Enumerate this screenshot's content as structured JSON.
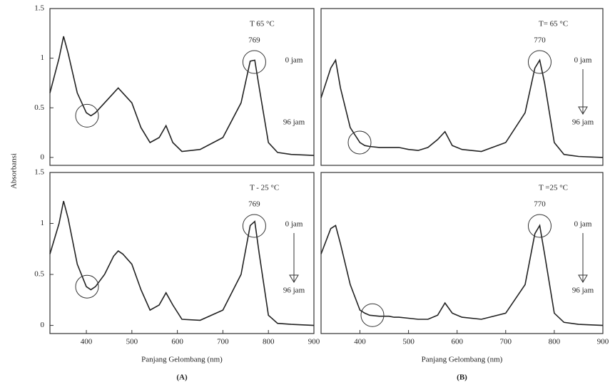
{
  "chart_data": [
    {
      "type": "line",
      "temperature": "T 65 °C",
      "peak_label": "769",
      "start_label": "0 jam",
      "end_label": "96 jam",
      "ylabel": "Absorbansi",
      "x": [
        320,
        340,
        350,
        360,
        380,
        400,
        410,
        420,
        440,
        460,
        470,
        480,
        500,
        520,
        540,
        560,
        575,
        590,
        610,
        650,
        700,
        740,
        760,
        770,
        780,
        800,
        820,
        850,
        900
      ],
      "values": [
        0.65,
        1.0,
        1.22,
        1.05,
        0.65,
        0.45,
        0.42,
        0.45,
        0.55,
        0.65,
        0.7,
        0.65,
        0.55,
        0.3,
        0.15,
        0.2,
        0.32,
        0.15,
        0.06,
        0.08,
        0.2,
        0.55,
        0.97,
        0.98,
        0.7,
        0.15,
        0.05,
        0.03,
        0.02
      ],
      "color": "#222222",
      "xlim": [
        320,
        900
      ],
      "ylim": [
        -0.08,
        1.5
      ],
      "yticks": [
        {
          "value": 1.5,
          "label": "1.5"
        },
        1,
        {
          "value": 0.5,
          "label": "0.5"
        },
        0
      ]
    },
    {
      "type": "line",
      "temperature": "T= 65 °C",
      "peak_label": "770",
      "start_label": "0 jam",
      "end_label": "96 jam",
      "x": [
        320,
        340,
        350,
        360,
        380,
        400,
        410,
        420,
        440,
        460,
        470,
        480,
        500,
        520,
        540,
        560,
        575,
        590,
        610,
        650,
        700,
        740,
        760,
        770,
        780,
        800,
        820,
        850,
        900
      ],
      "values": [
        0.6,
        0.9,
        0.98,
        0.7,
        0.3,
        0.15,
        0.12,
        0.11,
        0.1,
        0.1,
        0.1,
        0.1,
        0.08,
        0.07,
        0.1,
        0.18,
        0.26,
        0.12,
        0.08,
        0.06,
        0.15,
        0.45,
        0.9,
        0.98,
        0.75,
        0.15,
        0.03,
        0.01,
        0.0
      ],
      "color": "#222222",
      "xlim": [
        320,
        900
      ],
      "ylim": [
        -0.08,
        1.5
      ]
    },
    {
      "type": "line",
      "temperature": "T - 25 °C",
      "peak_label": "769",
      "start_label": "0 jam",
      "end_label": "96 jam",
      "xlabel": "Panjang Gelombang (nm)",
      "panel_label": "(A)",
      "x": [
        320,
        340,
        350,
        360,
        380,
        400,
        410,
        420,
        440,
        460,
        470,
        480,
        500,
        520,
        540,
        560,
        575,
        590,
        610,
        650,
        700,
        740,
        760,
        770,
        780,
        800,
        820,
        850,
        900
      ],
      "values": [
        0.7,
        1.0,
        1.22,
        1.05,
        0.6,
        0.38,
        0.35,
        0.38,
        0.5,
        0.68,
        0.73,
        0.7,
        0.6,
        0.35,
        0.15,
        0.2,
        0.32,
        0.2,
        0.06,
        0.05,
        0.15,
        0.5,
        0.98,
        1.02,
        0.7,
        0.1,
        0.02,
        0.01,
        0.0
      ],
      "color": "#222222",
      "xlim": [
        320,
        900
      ],
      "ylim": [
        -0.08,
        1.5
      ],
      "xticks": [
        400,
        500,
        600,
        700,
        800,
        900
      ],
      "yticks": [
        {
          "value": 1.5,
          "label": "1.5"
        },
        1,
        {
          "value": 0.5,
          "label": "0.5"
        },
        0
      ]
    },
    {
      "type": "line",
      "temperature": "T =25 °C",
      "peak_label": "770",
      "start_label": "0 jam",
      "end_label": "96 jam",
      "xlabel": "Panjang Gelombang (nm)",
      "panel_label": "(B)",
      "x": [
        320,
        340,
        350,
        360,
        380,
        400,
        410,
        420,
        440,
        460,
        470,
        480,
        500,
        520,
        540,
        560,
        575,
        590,
        610,
        650,
        700,
        740,
        760,
        770,
        780,
        800,
        820,
        850,
        900
      ],
      "values": [
        0.7,
        0.95,
        0.98,
        0.8,
        0.4,
        0.15,
        0.12,
        0.1,
        0.09,
        0.09,
        0.08,
        0.08,
        0.07,
        0.06,
        0.06,
        0.1,
        0.22,
        0.12,
        0.08,
        0.06,
        0.12,
        0.4,
        0.9,
        0.98,
        0.7,
        0.12,
        0.03,
        0.01,
        0.0
      ],
      "color": "#222222",
      "xlim": [
        320,
        900
      ],
      "ylim": [
        -0.08,
        1.5
      ],
      "xticks": [
        400,
        500,
        600,
        700,
        800,
        900
      ]
    }
  ]
}
